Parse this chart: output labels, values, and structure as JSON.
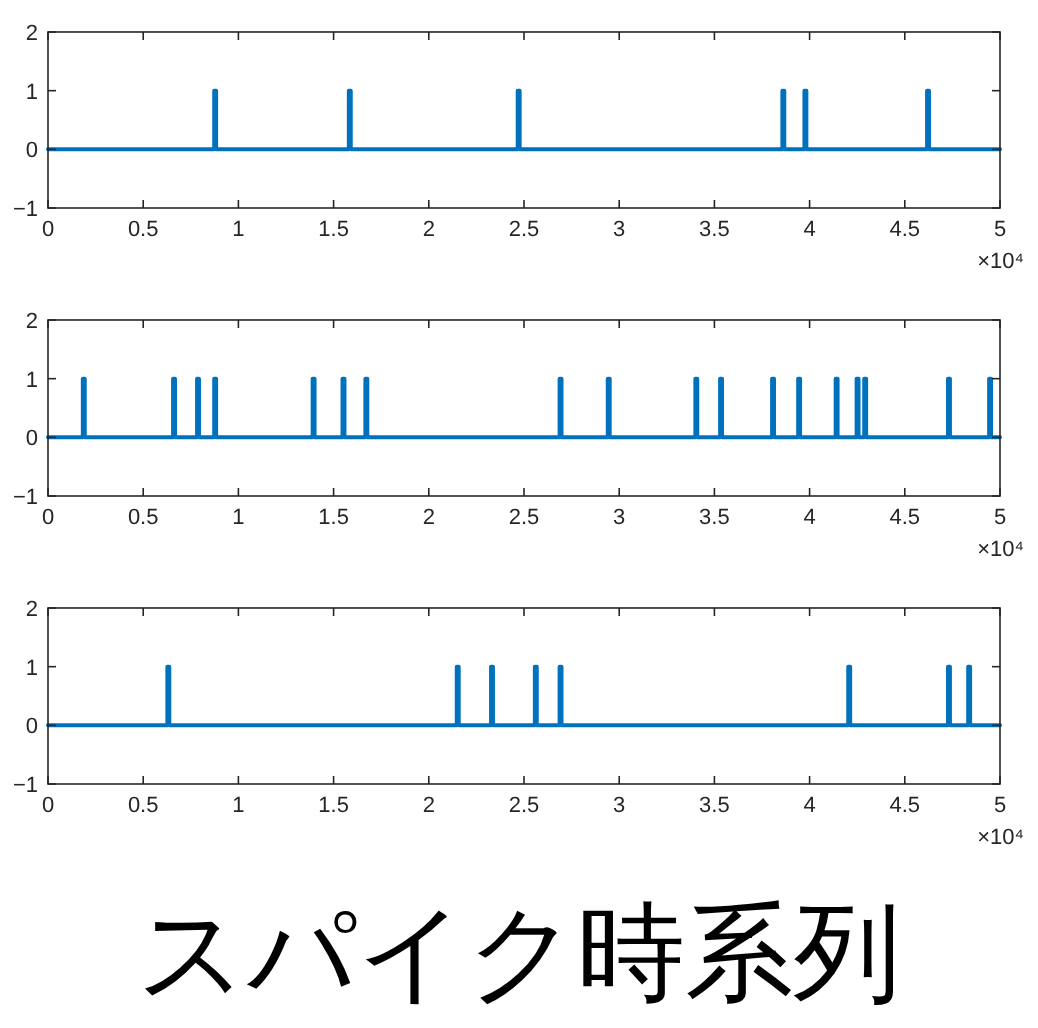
{
  "chart_data": [
    {
      "type": "line",
      "color": "#0072bd",
      "xlabel": "×10⁴",
      "xlim": [
        0,
        5
      ],
      "ylim": [
        -1,
        2
      ],
      "yticks": [
        -1,
        0,
        1,
        2
      ],
      "xticks": [
        0,
        0.5,
        1,
        1.5,
        2,
        2.5,
        3,
        3.5,
        4,
        4.5,
        5
      ],
      "x": [
        0,
        0.873,
        0.873,
        0.883,
        0.883,
        1.58,
        1.58,
        1.59,
        1.59,
        2.467,
        2.467,
        2.477,
        2.477,
        3.857,
        3.857,
        3.867,
        3.867,
        3.973,
        3.973,
        3.983,
        3.983,
        4.617,
        4.617,
        4.627,
        4.627,
        5
      ],
      "values": [
        0,
        0,
        1,
        1,
        0,
        0,
        1,
        1,
        0,
        0,
        1,
        1,
        0,
        0,
        1,
        1,
        0,
        0,
        1,
        1,
        0,
        0,
        1,
        1,
        0,
        0
      ]
    },
    {
      "type": "line",
      "color": "#0072bd",
      "xlabel": "×10⁴",
      "xlim": [
        0,
        5
      ],
      "ylim": [
        -1,
        2
      ],
      "yticks": [
        -1,
        0,
        1,
        2
      ],
      "xticks": [
        0,
        0.5,
        1,
        1.5,
        2,
        2.5,
        3,
        3.5,
        4,
        4.5,
        5
      ],
      "x": [
        0,
        0.183,
        0.183,
        0.193,
        0.193,
        0.657,
        0.657,
        0.667,
        0.667,
        0.783,
        0.783,
        0.793,
        0.793,
        0.873,
        0.873,
        0.883,
        0.883,
        1.39,
        1.39,
        1.4,
        1.4,
        1.547,
        1.547,
        1.557,
        1.557,
        1.667,
        1.667,
        1.677,
        1.677,
        2.687,
        2.687,
        2.697,
        2.697,
        2.94,
        2.94,
        2.95,
        2.95,
        3.4,
        3.4,
        3.41,
        3.41,
        3.53,
        3.53,
        3.54,
        3.54,
        3.803,
        3.803,
        3.813,
        3.813,
        3.94,
        3.94,
        3.95,
        3.95,
        4.137,
        4.137,
        4.147,
        4.147,
        4.247,
        4.247,
        4.257,
        4.257,
        4.287,
        4.287,
        4.297,
        4.297,
        4.727,
        4.727,
        4.737,
        4.737,
        4.943,
        4.943,
        4.953,
        4.953,
        5
      ],
      "values": [
        0,
        0,
        1,
        1,
        0,
        0,
        1,
        1,
        0,
        0,
        1,
        1,
        0,
        0,
        1,
        1,
        0,
        0,
        1,
        1,
        0,
        0,
        1,
        1,
        0,
        0,
        1,
        1,
        0,
        0,
        1,
        1,
        0,
        0,
        1,
        1,
        0,
        0,
        1,
        1,
        0,
        0,
        1,
        1,
        0,
        0,
        1,
        1,
        0,
        0,
        1,
        1,
        0,
        0,
        1,
        1,
        0,
        0,
        1,
        1,
        0,
        0,
        1,
        1,
        0,
        0,
        1,
        1,
        0,
        0,
        1,
        1,
        0,
        0
      ]
    },
    {
      "type": "line",
      "color": "#0072bd",
      "xlabel": "×10⁴",
      "xlim": [
        0,
        5
      ],
      "ylim": [
        -1,
        2
      ],
      "yticks": [
        -1,
        0,
        1,
        2
      ],
      "xticks": [
        0,
        0.5,
        1,
        1.5,
        2,
        2.5,
        3,
        3.5,
        4,
        4.5,
        5
      ],
      "x": [
        0,
        0.627,
        0.627,
        0.637,
        0.637,
        2.147,
        2.147,
        2.157,
        2.157,
        2.327,
        2.327,
        2.337,
        2.337,
        2.557,
        2.557,
        2.567,
        2.567,
        2.687,
        2.687,
        2.697,
        2.697,
        4.203,
        4.203,
        4.213,
        4.213,
        4.727,
        4.727,
        4.737,
        4.737,
        4.833,
        4.833,
        4.843,
        4.843,
        5
      ],
      "values": [
        0,
        0,
        1,
        1,
        0,
        0,
        1,
        1,
        0,
        0,
        1,
        1,
        0,
        0,
        1,
        1,
        0,
        0,
        1,
        1,
        0,
        0,
        1,
        1,
        0,
        0,
        1,
        1,
        0,
        0,
        1,
        1,
        0,
        0
      ],
      "annotations": [
        "スパイク時系列"
      ]
    }
  ]
}
